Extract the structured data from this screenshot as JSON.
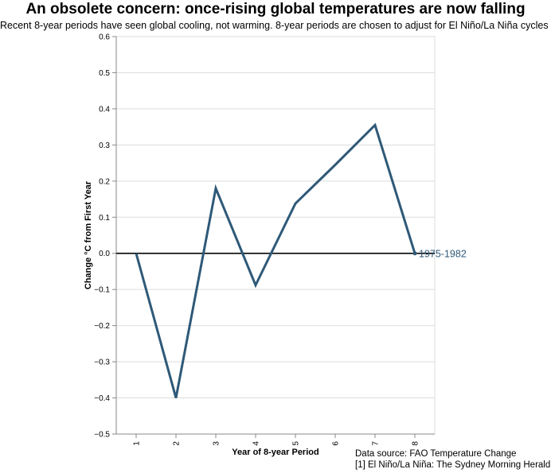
{
  "header": {
    "title": "An obsolete concern: once-rising global temperatures are now falling",
    "subtitle": "Recent 8-year periods have seen global cooling, not warming. 8-year periods are chosen to adjust for El Niño/La Niña cycles [1]."
  },
  "footer": {
    "source": "Data source: FAO Temperature Change",
    "note": "[1] El Niño/La Niña: The Sydney Morning Herald"
  },
  "chart_data": {
    "type": "line",
    "title": "An obsolete concern: once-rising global temperatures are now falling",
    "subtitle": "Recent 8-year periods have seen global cooling, not warming. 8-year periods are chosen to adjust for El Niño/La Niña cycles [1].",
    "xlabel": "Year of 8-year Period",
    "ylabel": "Change °C from First Year",
    "x": [
      1,
      2,
      3,
      4,
      5,
      6,
      7,
      8
    ],
    "ylim": [
      -0.5,
      0.6
    ],
    "yticks": [
      "−0.5",
      "−0.4",
      "−0.3",
      "−0.2",
      "−0.1",
      "0.0",
      "0.1",
      "0.2",
      "0.3",
      "0.4",
      "0.5",
      "0.6"
    ],
    "xticks": [
      "1",
      "2",
      "3",
      "4",
      "5",
      "6",
      "7",
      "8"
    ],
    "grid": true,
    "series": [
      {
        "name": "1975-1982",
        "values": [
          0.0,
          -0.4,
          0.18,
          -0.088,
          0.138,
          0.245,
          0.355,
          0.0
        ],
        "color": "#2e5978"
      }
    ],
    "reference_line": 0
  }
}
